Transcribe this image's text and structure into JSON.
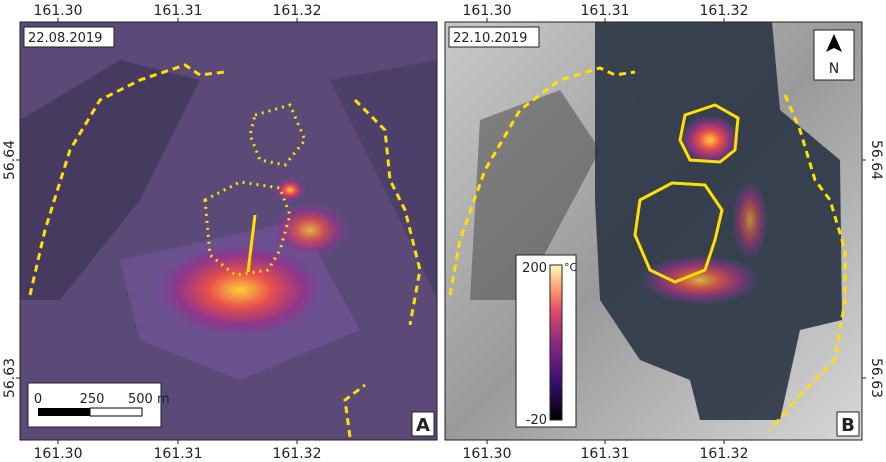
{
  "panels": [
    {
      "date": "22.08.2019",
      "letter": "A",
      "x_ticks": [
        "161.30",
        "161.31",
        "161.32"
      ],
      "y_ticks": [
        "56.64",
        "56.63"
      ],
      "scale_bar": [
        "0",
        "250",
        "500 m"
      ]
    },
    {
      "date": "22.10.2019",
      "letter": "B",
      "x_ticks": [
        "161.30",
        "161.31",
        "161.32"
      ],
      "y_ticks": [
        "56.64",
        "56.63"
      ],
      "colorbar": {
        "max": "200",
        "unit": "°C",
        "min": "-20"
      },
      "north": "N"
    }
  ]
}
